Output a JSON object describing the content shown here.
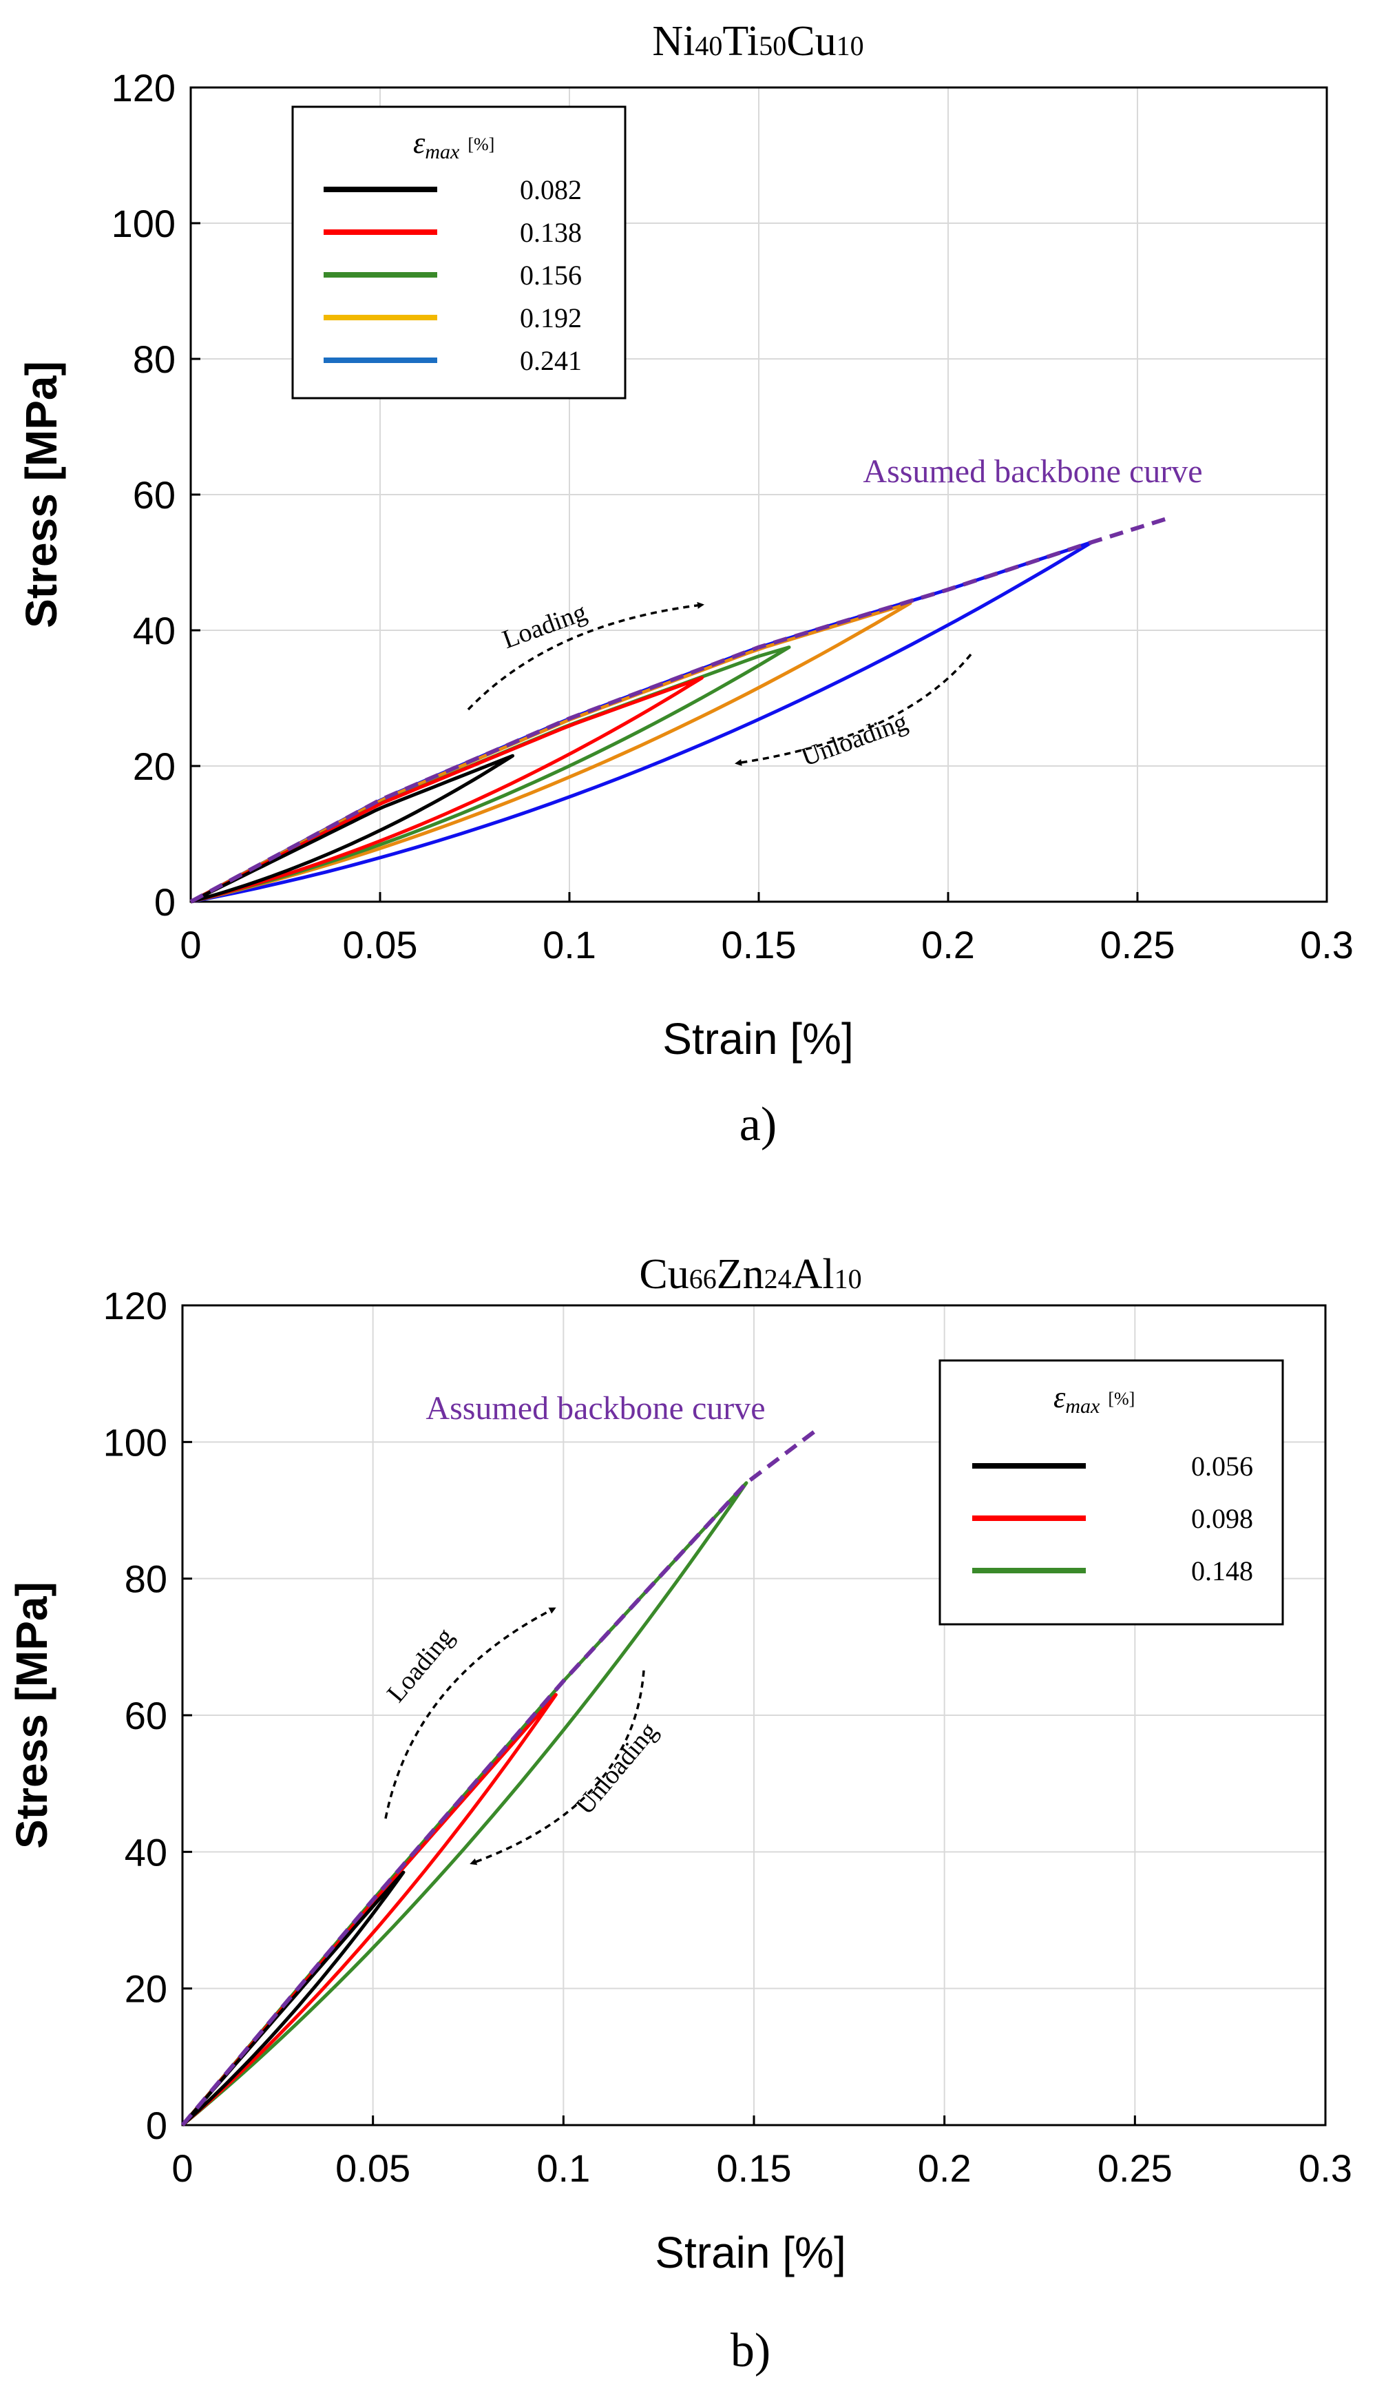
{
  "chart_data": [
    {
      "type": "line",
      "title_parts": [
        "Ni",
        "40",
        "Ti",
        "50",
        "Cu",
        "10"
      ],
      "xlabel": "Strain [%]",
      "ylabel": "Stress [MPa]",
      "xlim": [
        0,
        0.3
      ],
      "ylim": [
        0,
        120
      ],
      "xticks": [
        0,
        0.05,
        0.1,
        0.15,
        0.2,
        0.25,
        0.3
      ],
      "xtick_labels": [
        "0",
        "0.05",
        "0.1",
        "0.15",
        "0.2",
        "0.25",
        "0.3"
      ],
      "yticks": [
        0,
        20,
        40,
        60,
        80,
        100,
        120
      ],
      "ytick_labels": [
        "0",
        "20",
        "40",
        "60",
        "80",
        "100",
        "120"
      ],
      "grid": true,
      "legend_title": "ε",
      "legend_title_sub": "max",
      "legend_title_unit": "[%]",
      "legend_placement": "top-left",
      "series": [
        {
          "name": "0.082",
          "color": "#000000",
          "legend_color": "#000000",
          "peak": [
            0.085,
            21.5
          ],
          "sag": 2.2
        },
        {
          "name": "0.138",
          "color": "#ff0000",
          "legend_color": "#ff0000",
          "peak": [
            0.135,
            33.0
          ],
          "sag": 3.5
        },
        {
          "name": "0.156",
          "color": "#3a8a2a",
          "legend_color": "#3a8a2a",
          "peak": [
            0.158,
            37.5
          ],
          "sag": 4.0
        },
        {
          "name": "0.192",
          "color": "#e88a10",
          "legend_color": "#f2b800",
          "peak": [
            0.19,
            44.0
          ],
          "sag": 4.8
        },
        {
          "name": "0.241",
          "color": "#1010ee",
          "legend_color": "#1b6ec2",
          "peak": [
            0.238,
            53.0
          ],
          "sag": 7.0
        }
      ],
      "backbone": {
        "label": "Assumed backbone curve",
        "color": "#7030a0",
        "x": [
          0,
          0.05,
          0.1,
          0.15,
          0.2,
          0.238,
          0.258
        ],
        "y": [
          0,
          15,
          27,
          37.5,
          46,
          53,
          56.5
        ]
      },
      "annotations": [
        {
          "text": "Loading",
          "pos": [
            0.085,
            38
          ]
        },
        {
          "text": "Unloading",
          "pos": [
            0.19,
            24
          ]
        }
      ],
      "panel_label": "a)"
    },
    {
      "type": "line",
      "title_parts": [
        "Cu",
        "66",
        "Zn",
        "24",
        "Al",
        "10"
      ],
      "xlabel": "Strain [%]",
      "ylabel": "Stress [MPa]",
      "xlim": [
        0,
        0.3
      ],
      "ylim": [
        0,
        120
      ],
      "xticks": [
        0,
        0.05,
        0.1,
        0.15,
        0.2,
        0.25,
        0.3
      ],
      "xtick_labels": [
        "0",
        "0.05",
        "0.1",
        "0.15",
        "0.2",
        "0.25",
        "0.3"
      ],
      "yticks": [
        0,
        20,
        40,
        60,
        80,
        100,
        120
      ],
      "ytick_labels": [
        "0",
        "20",
        "40",
        "60",
        "80",
        "100",
        "120"
      ],
      "grid": true,
      "legend_title": "ε",
      "legend_title_sub": "max",
      "legend_title_unit": "[%]",
      "legend_placement": "top-right",
      "series": [
        {
          "name": "0.056",
          "color": "#000000",
          "legend_color": "#000000",
          "peak": [
            0.058,
            37.0
          ],
          "sag": 2.0
        },
        {
          "name": "0.098",
          "color": "#ff0000",
          "legend_color": "#ff0000",
          "peak": [
            0.098,
            63.0
          ],
          "sag": 4.0
        },
        {
          "name": "0.148",
          "color": "#3a8a2a",
          "legend_color": "#3a8a2a",
          "peak": [
            0.148,
            94.0
          ],
          "sag": 6.5
        }
      ],
      "backbone": {
        "label": "Assumed backbone curve",
        "color": "#7030a0",
        "x": [
          0,
          0.05,
          0.1,
          0.148,
          0.167
        ],
        "y": [
          0,
          33,
          65,
          94,
          102
        ]
      },
      "annotations": [
        {
          "text": "Loading",
          "pos": [
            0.068,
            57
          ]
        },
        {
          "text": "Unloading",
          "pos": [
            0.115,
            48
          ]
        }
      ],
      "panel_label": "b)"
    }
  ]
}
